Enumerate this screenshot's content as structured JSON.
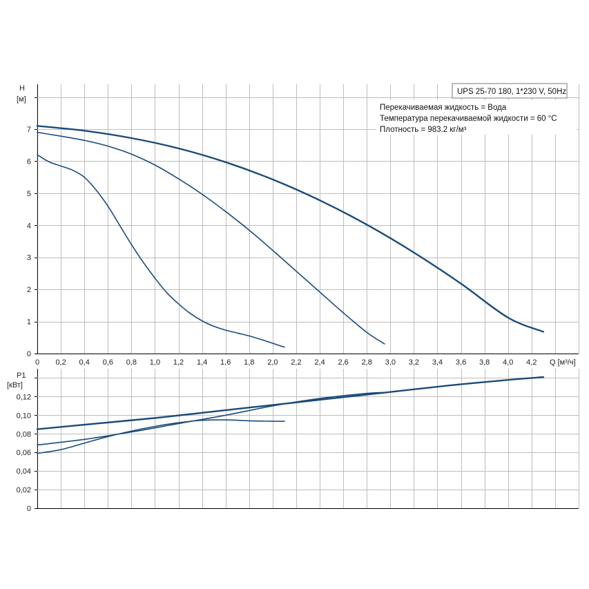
{
  "chart_data": [
    {
      "type": "line",
      "title": "UPS 25-70 180, 1*230 V, 50Hz",
      "info": [
        "Перекачиваемая жидкость = Вода",
        "Температура перекачиваемой жидкости = 60 °C",
        "Плотность = 983.2 кг/м³"
      ],
      "ylabel_lines": [
        "H",
        "[м]"
      ],
      "xlabel": "Q [м³/ч]",
      "xlim": [
        0,
        4.6
      ],
      "ylim": [
        0,
        8.4
      ],
      "x_ticks": [
        0,
        0.2,
        0.4,
        0.6,
        0.8,
        1.0,
        1.2,
        1.4,
        1.6,
        1.8,
        2.0,
        2.2,
        2.4,
        2.6,
        2.8,
        3.0,
        3.2,
        3.4,
        3.6,
        3.8,
        4.0,
        4.2
      ],
      "x_tick_labels": [
        "0",
        "0,2",
        "0,4",
        "0,6",
        "0,8",
        "1,0",
        "1,2",
        "1,4",
        "1,6",
        "1,8",
        "2,0",
        "2,2",
        "2,4",
        "2,6",
        "2,8",
        "3,0",
        "3,2",
        "3,4",
        "3,6",
        "3,8",
        "4,0",
        "4,2"
      ],
      "x_grid": [
        0,
        0.2,
        0.4,
        0.6,
        0.8,
        1.0,
        1.2,
        1.4,
        1.6,
        1.8,
        2.0,
        2.2,
        2.4,
        2.6,
        2.8,
        3.0,
        3.2,
        3.4,
        3.6,
        3.8,
        4.0,
        4.2,
        4.4,
        4.6
      ],
      "y_ticks": [
        0,
        1,
        2,
        3,
        4,
        5,
        6,
        7
      ],
      "y_tick_labels": [
        "0",
        "1",
        "2",
        "3",
        "4",
        "5",
        "6",
        "7"
      ],
      "y_grid": [
        0,
        1,
        2,
        3,
        4,
        5,
        6,
        7,
        8
      ],
      "grid": true,
      "series": [
        {
          "x": [
            0,
            0.1,
            0.2,
            0.3,
            0.4,
            0.5,
            0.6,
            0.7,
            0.8,
            0.9,
            1.0,
            1.1,
            1.2,
            1.3,
            1.4,
            1.5,
            1.6,
            1.7,
            1.8,
            1.9,
            2.0,
            2.1
          ],
          "y": [
            6.2,
            5.98,
            5.85,
            5.72,
            5.5,
            5.1,
            4.6,
            4.0,
            3.4,
            2.85,
            2.35,
            1.9,
            1.55,
            1.25,
            1.02,
            0.85,
            0.73,
            0.64,
            0.55,
            0.44,
            0.32,
            0.2
          ]
        },
        {
          "x": [
            0,
            0.2,
            0.4,
            0.6,
            0.8,
            1.0,
            1.2,
            1.4,
            1.6,
            1.8,
            2.0,
            2.2,
            2.4,
            2.6,
            2.8,
            2.95
          ],
          "y": [
            6.9,
            6.78,
            6.65,
            6.47,
            6.22,
            5.88,
            5.45,
            4.97,
            4.43,
            3.85,
            3.22,
            2.57,
            1.92,
            1.27,
            0.66,
            0.3
          ]
        },
        {
          "x": [
            0,
            0.4,
            0.8,
            1.2,
            1.6,
            2.0,
            2.4,
            2.8,
            3.2,
            3.6,
            4.0,
            4.3
          ],
          "y": [
            7.1,
            6.95,
            6.72,
            6.4,
            5.97,
            5.43,
            4.78,
            4.02,
            3.15,
            2.18,
            1.12,
            0.68
          ]
        }
      ]
    },
    {
      "type": "line",
      "ylabel_lines": [
        "P1",
        "[кВт]"
      ],
      "xlim": [
        0,
        4.6
      ],
      "ylim": [
        0,
        0.15
      ],
      "y_ticks": [
        0,
        0.02,
        0.04,
        0.06,
        0.08,
        0.1,
        0.12
      ],
      "y_tick_labels": [
        "0",
        "0,02",
        "0,04",
        "0,06",
        "0,08",
        "0,10",
        "0,12"
      ],
      "y_grid": [
        0,
        0.02,
        0.04,
        0.06,
        0.08,
        0.1,
        0.12,
        0.14
      ],
      "grid": true,
      "series": [
        {
          "x": [
            0,
            0.2,
            0.4,
            0.6,
            0.8,
            1.0,
            1.2,
            1.4,
            1.6,
            1.8,
            2.0,
            2.1
          ],
          "y": [
            0.059,
            0.063,
            0.07,
            0.077,
            0.083,
            0.088,
            0.092,
            0.0945,
            0.095,
            0.094,
            0.0935,
            0.0935
          ]
        },
        {
          "x": [
            0,
            0.4,
            0.8,
            1.2,
            1.6,
            2.0,
            2.4,
            2.8,
            2.95
          ],
          "y": [
            0.068,
            0.074,
            0.082,
            0.091,
            0.1,
            0.11,
            0.118,
            0.1235,
            0.1245
          ]
        },
        {
          "x": [
            0,
            0.5,
            1.0,
            1.5,
            2.0,
            2.5,
            3.0,
            3.5,
            4.0,
            4.3
          ],
          "y": [
            0.085,
            0.091,
            0.097,
            0.104,
            0.111,
            0.118,
            0.125,
            0.132,
            0.138,
            0.141
          ]
        }
      ]
    }
  ],
  "colors": {
    "curve": "#1a4a7a",
    "grid": "#bdbdbd",
    "axis": "#000000",
    "text": "#222222"
  }
}
